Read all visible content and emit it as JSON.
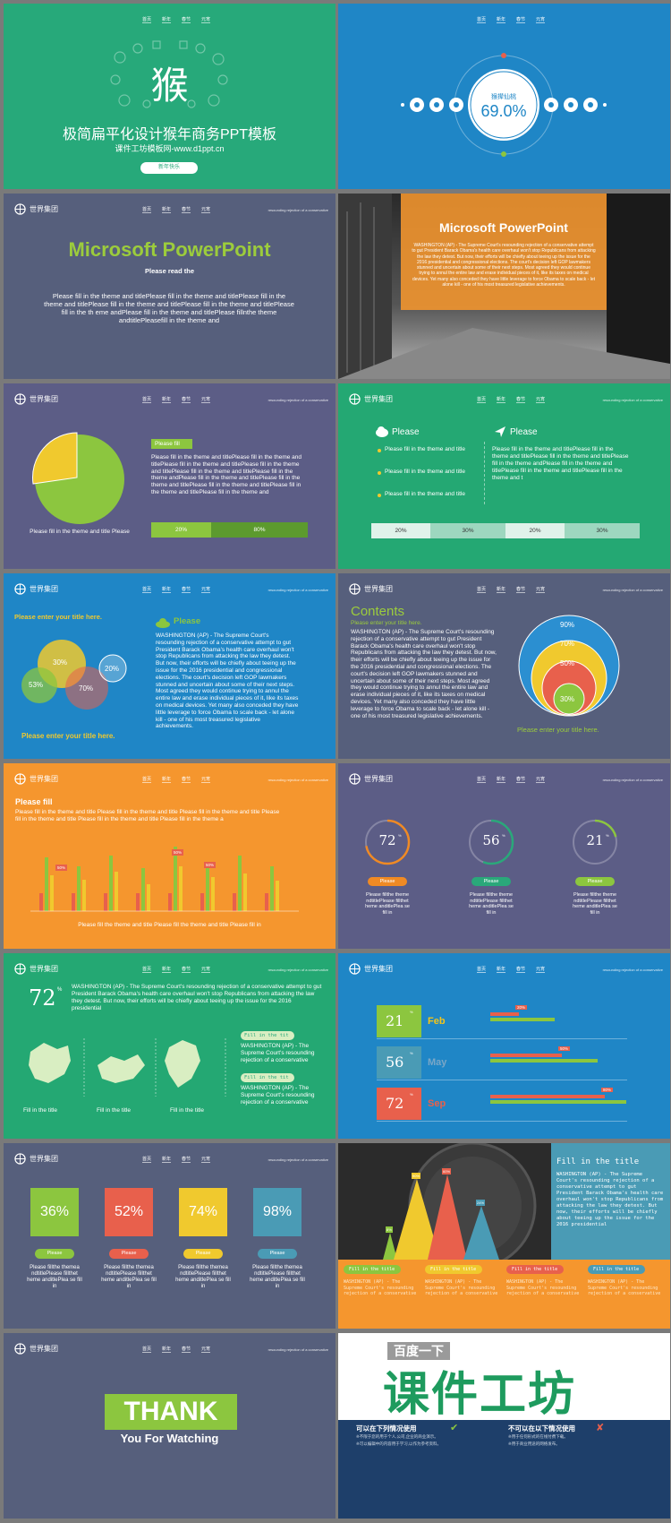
{
  "nav": [
    "首页",
    "新年",
    "春节",
    "元宵"
  ],
  "logo_text": "世界集团",
  "tagline": "resounding rejection of a conservative",
  "s1": {
    "char": "猴",
    "title": "极简扁平化设计猴年商务PPT模板",
    "subtitle": "课件工坊模板网-www.d1ppt.cn",
    "button": "新年快乐"
  },
  "s2": {
    "label": "猴撵仙桃",
    "percent": "69.0%"
  },
  "s3": {
    "title": "Microsoft PowerPoint",
    "subtitle": "Please read the",
    "body": "Please fill in the theme and titlePlease fill in the theme and titlePlease fill in the theme and titlePlease fill in the theme and titlePlease fill in the theme and titlePlease fill in the th eme andPlease fill in the theme and titlePlease fillnthe theme andtitlePleasefill in the theme and"
  },
  "s4": {
    "title": "Microsoft PowerPoint",
    "body": "WASHINGTON (AP) - The Supreme Court's resounding rejection of a conservative attempt to gut President Barack Obama's health care overhaul won't stop Republicans from attacking the law they detest. But now, their efforts will be chiefly about teeing up the issue for the 2016 presidential and congressional elections. The court's decision left GOP lawmakers stunned and uncertain about some of their next steps. Most agreed they would continue trying to annul the entire law and erase individual pieces of it, like its taxes on medical devices. Yet many also conceded they have little leverage to force Obama to scale back - let alone kill - one of his most treasured legislative achievements."
  },
  "s5": {
    "pie_caption": "Please fill in the theme and title Please",
    "tag": "Please fill",
    "body": "Please fill in the theme and titlePlease fill in the theme and titlePlease fill in the theme and titlePlease fill in the theme and titlePlease fill in the theme and titlePlease fill in the theme andPlease fill in the theme and titlePlease fill in the theme and titlePlease fill in the theme and titlePlease fill in the theme and titlePlease fill in the theme and",
    "bar_a": "20%",
    "bar_b": "80%"
  },
  "s6": {
    "head_l": "Please",
    "head_r": "Please",
    "items": [
      "Please fill in the theme and title",
      "Please fill in the theme and title",
      "Please fill in the theme and title"
    ],
    "body": "Please fill in the theme and titlePlease fill in the theme and titlePlease fill in the theme and titlePlease fill in the theme andPlease fill in the theme and titlePlease fill in the theme and titlePlease fill in the theme and t",
    "bar": [
      "20%",
      "30%",
      "20%",
      "30%"
    ]
  },
  "s7": {
    "title": "Please enter your title here.",
    "footer": "Please enter your title here.",
    "head": "Please",
    "circles": [
      "30%",
      "53%",
      "70%",
      "20%"
    ],
    "body": "WASHINGTON (AP) - The Supreme Court's resounding rejection of a conservative attempt to gut President Barack Obama's health care overhaul won't stop Republicans from attacking the law they detest. But now, their efforts will be chiefly about teeing up the issue for the 2016 presidential and congressional elections. The court's decision left GOP lawmakers stunned and uncertain about some of their next steps. Most agreed they would continue trying to annul the entire law and erase individual pieces of it, like its taxes on medical devices. Yet many also conceded they have little leverage to force Obama to scale back - let alone kill - one of his most treasured legislative achievements."
  },
  "s8": {
    "title": "Contents",
    "sub": "Please enter your title here.",
    "body": "WASHINGTON (AP) - The Supreme Court's resounding rejection of a conservative attempt to gut President Barack Obama's health care overhaul won't stop Republicans from attacking the law they detest. But now, their efforts will be chiefly about teeing up the issue for the 2016 presidential and congressional elections. The court's decision left GOP lawmakers stunned and uncertain about some of their next steps. Most agreed they would continue trying to annul the entire law and erase individual pieces of it, like its taxes on medical devices. Yet many also conceded they have little leverage to force Obama to scale back - let alone kill - one of his most treasured legislative achievements.",
    "rings": [
      "90%",
      "70%",
      "50%",
      "30%"
    ],
    "footer": "Please enter your title here."
  },
  "s9": {
    "title": "Please fill",
    "body": "Please fill in the theme and title Please fill in the theme and title Please fill in the theme and title Please fill in the theme and title Please fill in the theme and title Please fill in the theme a",
    "footer": "Please fill the theme and title Please fill the theme and title Please fill in",
    "labels": [
      "50%",
      "50%",
      "50%"
    ]
  },
  "s10": {
    "gauges": [
      {
        "value": "72",
        "label": "Please",
        "pct": 72,
        "color": "#f08a24"
      },
      {
        "value": "56",
        "label": "Please",
        "pct": 56,
        "color": "#2aa87a"
      },
      {
        "value": "21",
        "label": "Please",
        "pct": 21,
        "color": "#8cc63f"
      }
    ],
    "caption": "Please fillthe theme ndtitlePlease fillthet heme anditlePlea se fill in",
    "unit": "%"
  },
  "s11": {
    "big": "72",
    "unit": "%",
    "body": "WASHINGTON (AP) - The Supreme Court's resounding rejection of a conservative attempt to gut President Barack Obama's health care overhaul won't stop Republicans from attacking the law they detest. But now, their efforts will be chiefly about teeing up the issue for the 2016 presidential",
    "maps": [
      "Fill in the title",
      "Fill in the title",
      "Fill in the title"
    ],
    "tag1": "Fill in the tit",
    "tag2": "Fill in the tit",
    "txt": "WASHINGTON (AP) - The Supreme Court's resounding rejection of a conservative"
  },
  "s12": {
    "rows": [
      {
        "value": "21",
        "month": "Feb",
        "label": "20%",
        "color": "#8cc63f",
        "mc": "#f5c518",
        "w1": 0.2,
        "w2": 0.45
      },
      {
        "value": "56",
        "month": "May",
        "label": "50%",
        "color": "#4a9bb5",
        "mc": "#7aa7c7",
        "w1": 0.5,
        "w2": 0.75
      },
      {
        "value": "72",
        "month": "Sep",
        "label": "80%",
        "color": "#e8604c",
        "mc": "#e8604c",
        "w1": 0.8,
        "w2": 0.95
      }
    ],
    "unit": "%"
  },
  "s13": {
    "boxes": [
      {
        "value": "36%",
        "color": "#8cc63f"
      },
      {
        "value": "52%",
        "color": "#e8604c"
      },
      {
        "value": "74%",
        "color": "#f0c92e"
      },
      {
        "value": "98%",
        "color": "#4a9bb5"
      }
    ],
    "label": "Please",
    "caption": "Please fillthe themea ndtitlePlease fillthet heme anditlePlea se fill in"
  },
  "s14": {
    "title": "Fill in the title",
    "body": "WASHINGTON (AP) - The Supreme Court's resounding rejection of a conservative attempt to gut President Barack Obama's health care overhaul won't stop Republicans from attacking the law they detest. But now, their efforts will be chiefly about teeing up the issue for the 2016 presidential",
    "tags": [
      "Fill in the title",
      "Fill in the title",
      "Fill in the title",
      "Fill in the title"
    ],
    "cols": "WASHINGTON (AP) - The Supreme Court's resounding rejection of a conservative",
    "tri": [
      "8%",
      "90%",
      "60%",
      "24%"
    ]
  },
  "s15": {
    "thank": "THANK",
    "sub": "You For Watching"
  },
  "s16": {
    "top": "百度一下",
    "big": "课件工坊",
    "left_head": "可以在下列情况使用",
    "right_head": "不可以在以下情况使用",
    "left1": "※不限于您的用于个人,公司,企业的商业演示。",
    "left2": "※可以编辑中的内容用于学习,以作为参考资料。",
    "right1": "※用于任何形式的在线付费下载。",
    "right2": "※用于商业用途的网络发布。"
  }
}
